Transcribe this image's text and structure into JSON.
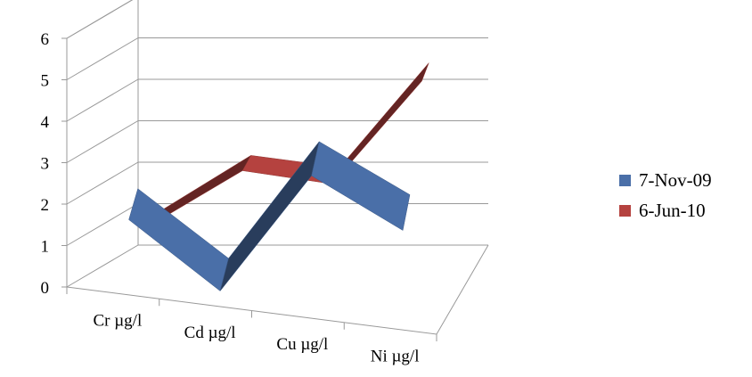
{
  "chart_data": {
    "type": "line",
    "categories": [
      "Cr µg/l",
      "Cd µg/l",
      "Cu µg/l",
      "Ni µg/l"
    ],
    "series": [
      {
        "name": "7-Nov-09",
        "values": [
          1.5,
          0.0,
          3.0,
          1.9
        ],
        "color": "#4a6fa8"
      },
      {
        "name": "6-Jun-10",
        "values": [
          1.0,
          2.4,
          2.2,
          4.8
        ],
        "color": "#b5423f"
      }
    ],
    "y_ticks": [
      "0",
      "1",
      "2",
      "3",
      "4",
      "5",
      "6"
    ],
    "ylim": [
      0,
      6
    ],
    "grid": true,
    "legend_position": "right",
    "style": "3d-line"
  }
}
